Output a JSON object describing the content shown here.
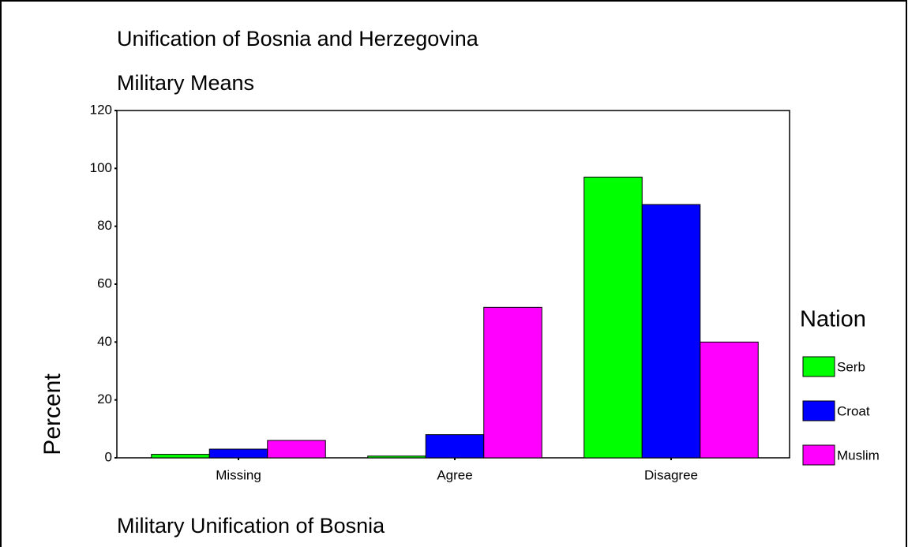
{
  "chart_data": {
    "type": "bar",
    "title": "Unification of Bosnia and Herzegovina",
    "subtitle": "Military Means",
    "y_label": "Percent",
    "x_label": "Military Unification of Bosnia",
    "legend_title": "Nation",
    "categories": [
      "Missing",
      "Agree",
      "Disagree"
    ],
    "series": [
      {
        "name": "Serb",
        "color": "#00ff00",
        "values": [
          1.2,
          0.6,
          97
        ]
      },
      {
        "name": "Croat",
        "color": "#0000ff",
        "values": [
          3,
          8,
          87.5
        ]
      },
      {
        "name": "Muslim",
        "color": "#ff00ff",
        "values": [
          6,
          52,
          40
        ]
      }
    ],
    "ylim": [
      0,
      120
    ],
    "yticks": [
      0,
      20,
      40,
      60,
      80,
      100,
      120
    ],
    "legend": "right"
  }
}
